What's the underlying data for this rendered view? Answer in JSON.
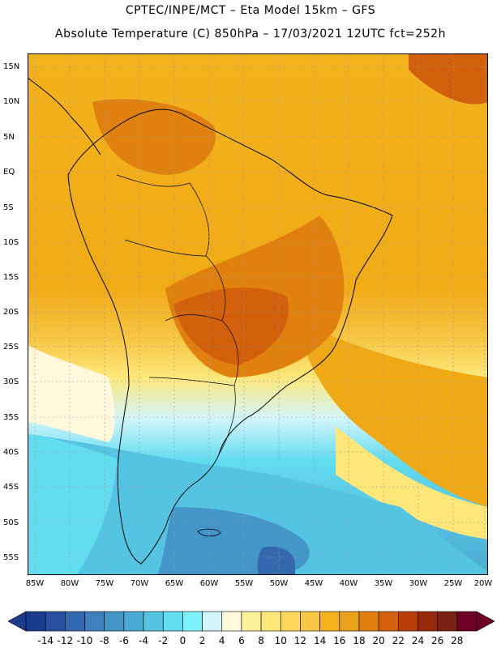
{
  "header": {
    "line1": "CPTEC/INPE/MCT –  Eta Model 15km – GFS",
    "line2": "Absolute Temperature (C) 850hPa – 17/03/2021 12UTC fct=252h"
  },
  "map": {
    "lat_labels": [
      "15N",
      "10N",
      "5N",
      "EQ",
      "5S",
      "10S",
      "15S",
      "20S",
      "25S",
      "30S",
      "35S",
      "40S",
      "45S",
      "50S",
      "55S"
    ],
    "lon_labels": [
      "85W",
      "80W",
      "75W",
      "70W",
      "65W",
      "60W",
      "55W",
      "50W",
      "45W",
      "40W",
      "35W",
      "30W",
      "25W",
      "20W"
    ]
  },
  "colorbar": {
    "labels": [
      "-14",
      "-12",
      "-10",
      "-8",
      "-6",
      "-4",
      "-2",
      "0",
      "2",
      "4",
      "6",
      "8",
      "10",
      "12",
      "14",
      "16",
      "18",
      "20",
      "22",
      "24",
      "26",
      "28"
    ],
    "colors": [
      "#1b3c8c",
      "#28509e",
      "#3368ae",
      "#3f7fbe",
      "#4596c8",
      "#4aaad4",
      "#55c4e2",
      "#62dcef",
      "#7ef2fb",
      "#d2f5fb",
      "#fff8dc",
      "#fef09a",
      "#fde77a",
      "#fbd85a",
      "#f7c746",
      "#f2b21c",
      "#eaa01b",
      "#e0810f",
      "#d2600b",
      "#b83e08",
      "#972a0c",
      "#772212",
      "#6e0025"
    ]
  }
}
